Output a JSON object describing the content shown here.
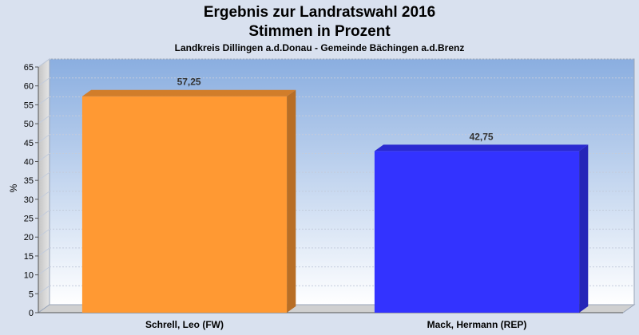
{
  "chart_data": {
    "type": "bar",
    "title": [
      "Ergebnis zur Landratswahl 2016",
      "Stimmen in Prozent"
    ],
    "subtitle": "Landkreis Dillingen a.d.Donau - Gemeinde Bächingen a.d.Brenz",
    "ylabel": "%",
    "xlabel": "",
    "ylim": [
      0,
      65
    ],
    "yticks": [
      0,
      5,
      10,
      15,
      20,
      25,
      30,
      35,
      40,
      45,
      50,
      55,
      60,
      65
    ],
    "categories": [
      "Schrell, Leo (FW)",
      "Mack, Hermann (REP)"
    ],
    "values": [
      57.25,
      42.75
    ],
    "data_labels": [
      "57,25",
      "42,75"
    ],
    "colors": [
      "#ff9933",
      "#3333ff"
    ],
    "grid": true,
    "legend": "none"
  }
}
